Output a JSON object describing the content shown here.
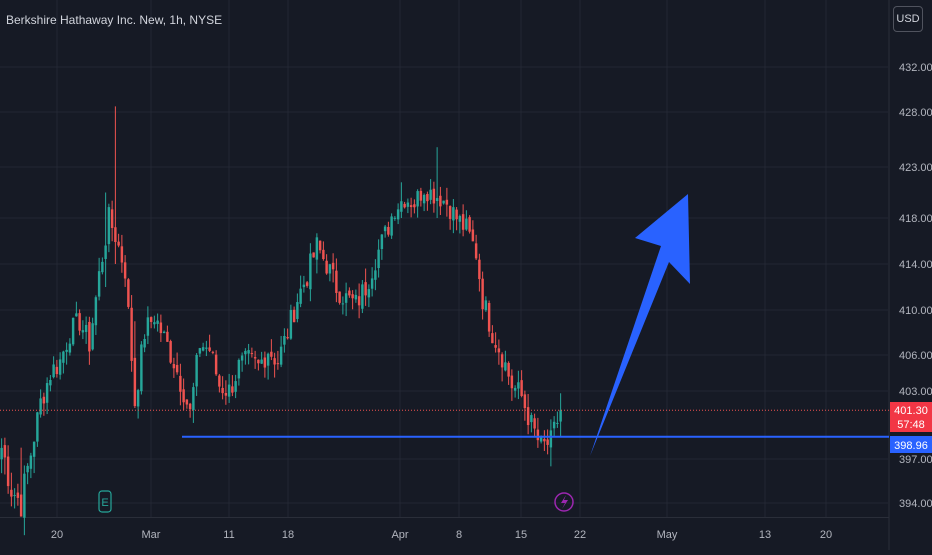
{
  "title": "Berkshire Hathaway Inc. New, 1h, NYSE",
  "currency": "USD",
  "chart_data": {
    "type": "candlestick",
    "symbol": "Berkshire Hathaway Inc. New",
    "interval": "1h",
    "exchange": "NYSE",
    "y_ticks": [
      394,
      397,
      403,
      406,
      410,
      414,
      418,
      423,
      428,
      432
    ],
    "y_tick_labels": [
      "394.00",
      "397.00",
      "403.00",
      "406.00",
      "410.00",
      "414.00",
      "418.00",
      "423.00",
      "428.00",
      "432.00"
    ],
    "x_tick_labels": [
      "20",
      "Mar",
      "11",
      "18",
      "Apr",
      "8",
      "15",
      "22",
      "May",
      "13",
      "20"
    ],
    "last_price": 401.3,
    "last_price_label": "401.30",
    "countdown": "57:48",
    "support_level": 398.96,
    "support_label": "398.96",
    "close_path": [
      [
        0,
        398.0
      ],
      [
        3,
        395.0
      ],
      [
        6,
        394.0
      ],
      [
        9,
        397.5
      ],
      [
        12,
        402.0
      ],
      [
        15,
        404.5
      ],
      [
        18,
        405.5
      ],
      [
        21,
        408.0
      ],
      [
        24,
        409.0
      ],
      [
        27,
        407.0
      ],
      [
        30,
        413.0
      ],
      [
        33,
        418.0
      ],
      [
        35,
        416.5
      ],
      [
        38,
        413.5
      ],
      [
        41,
        402.0
      ],
      [
        44,
        408.0
      ],
      [
        47,
        409.5
      ],
      [
        50,
        407.5
      ],
      [
        53,
        405.5
      ],
      [
        56,
        403.0
      ],
      [
        58,
        401.0
      ],
      [
        61,
        407.0
      ],
      [
        64,
        406.5
      ],
      [
        67,
        403.5
      ],
      [
        70,
        403.0
      ],
      [
        73,
        405.0
      ],
      [
        76,
        405.5
      ],
      [
        79,
        405.0
      ],
      [
        82,
        406.5
      ],
      [
        85,
        405.5
      ],
      [
        88,
        408.0
      ],
      [
        91,
        411.0
      ],
      [
        94,
        413.0
      ],
      [
        97,
        415.5
      ],
      [
        100,
        414.0
      ],
      [
        103,
        412.0
      ],
      [
        106,
        411.0
      ],
      [
        109,
        410.5
      ],
      [
        112,
        412.0
      ],
      [
        115,
        414.5
      ],
      [
        118,
        416.5
      ],
      [
        121,
        419.0
      ],
      [
        124,
        420.0
      ],
      [
        127,
        419.5
      ],
      [
        130,
        421.0
      ],
      [
        132,
        420.5
      ],
      [
        135,
        420.0
      ],
      [
        137,
        419.5
      ],
      [
        140,
        418.0
      ],
      [
        143,
        417.0
      ],
      [
        146,
        415.0
      ],
      [
        148,
        411.0
      ],
      [
        151,
        408.0
      ],
      [
        154,
        406.0
      ],
      [
        157,
        403.5
      ],
      [
        160,
        402.5
      ],
      [
        163,
        400.0
      ],
      [
        166,
        398.0
      ],
      [
        169,
        398.5
      ],
      [
        172,
        401.3
      ]
    ],
    "wick_ranges": [
      [
        35,
        414.0,
        428.5
      ],
      [
        32,
        412.0,
        420.5
      ],
      [
        41,
        401.5,
        409.0
      ],
      [
        6,
        393.5,
        398.0
      ],
      [
        134,
        418.0,
        424.8
      ],
      [
        123,
        418.0,
        421.5
      ],
      [
        169,
        396.5,
        400.5
      ],
      [
        172,
        399.0,
        402.8
      ]
    ],
    "projection": {
      "direction": "up",
      "from": [
        180,
        397.5
      ],
      "to": [
        209,
        419.5
      ]
    }
  }
}
